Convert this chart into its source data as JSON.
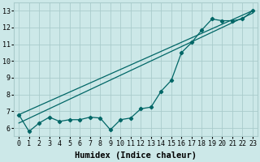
{
  "xlabel": "Humidex (Indice chaleur)",
  "bg_color": "#cce8e8",
  "grid_color": "#aacccc",
  "line_color": "#006666",
  "xlim": [
    -0.5,
    23.5
  ],
  "ylim": [
    5.5,
    13.5
  ],
  "xticks": [
    0,
    1,
    2,
    3,
    4,
    5,
    6,
    7,
    8,
    9,
    10,
    11,
    12,
    13,
    14,
    15,
    16,
    17,
    18,
    19,
    20,
    21,
    22,
    23
  ],
  "yticks": [
    6,
    7,
    8,
    9,
    10,
    11,
    12,
    13
  ],
  "x": [
    0,
    1,
    2,
    3,
    4,
    5,
    6,
    7,
    8,
    9,
    10,
    11,
    12,
    13,
    14,
    15,
    16,
    17,
    18,
    19,
    20,
    21,
    22,
    23
  ],
  "y_data": [
    6.8,
    5.8,
    6.3,
    6.65,
    6.4,
    6.5,
    6.5,
    6.65,
    6.6,
    5.9,
    6.5,
    6.6,
    7.15,
    7.25,
    8.2,
    8.85,
    10.5,
    11.1,
    11.85,
    12.5,
    12.4,
    12.4,
    12.5,
    13.0
  ],
  "y_line1_start": 6.8,
  "y_line1_end": 13.0,
  "y_line2_start": 6.3,
  "y_line2_end": 12.85,
  "tick_fontsize": 6.0,
  "label_fontsize": 7.5
}
